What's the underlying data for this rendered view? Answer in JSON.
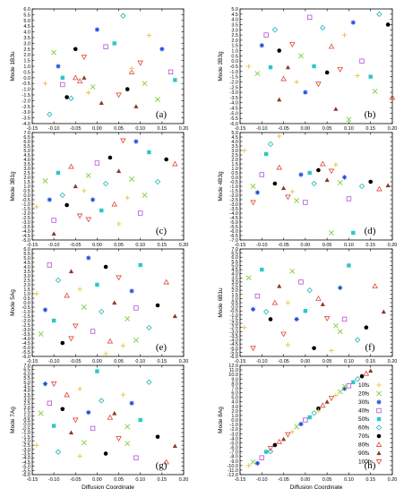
{
  "legend": [
    {
      "label": "10fs",
      "color": "#e8c84a",
      "marker": "plus"
    },
    {
      "label": "20fs",
      "color": "#8fd14f",
      "marker": "x"
    },
    {
      "label": "30fs",
      "color": "#1f4fd8",
      "marker": "star"
    },
    {
      "label": "40fs",
      "color": "#b44fd8",
      "marker": "square"
    },
    {
      "label": "50fs",
      "color": "#2cc7c7",
      "marker": "square-filled"
    },
    {
      "label": "60fs",
      "color": "#1fb0b0",
      "marker": "diamond"
    },
    {
      "label": "70fs",
      "color": "#000000",
      "marker": "circle"
    },
    {
      "label": "80fs",
      "color": "#e0453a",
      "marker": "triangle"
    },
    {
      "label": "90fs",
      "color": "#8a3a28",
      "marker": "triangle-filled"
    },
    {
      "label": "100fs",
      "color": "#e0453a",
      "marker": "triangle-down"
    }
  ],
  "chart_data": [
    {
      "type": "scatter",
      "panel": "(a)",
      "ylabel": "Mode 1B3u",
      "xlabel": "",
      "xlim": [
        -0.15,
        0.2
      ],
      "ylim": [
        -4.0,
        6.0
      ],
      "ystep": 0.5,
      "points": [
        [
          -0.12,
          -0.5
        ],
        [
          -0.1,
          2.2
        ],
        [
          -0.09,
          1.0
        ],
        [
          -0.08,
          -0.6
        ],
        [
          -0.08,
          0.0
        ],
        [
          -0.06,
          -1.8
        ],
        [
          -0.05,
          2.5
        ],
        [
          -0.04,
          -0.3
        ],
        [
          -0.03,
          0.0
        ],
        [
          -0.03,
          1.8
        ],
        [
          -0.02,
          -1.3
        ],
        [
          -0.01,
          -0.8
        ],
        [
          0.0,
          4.2
        ],
        [
          0.02,
          2.7
        ],
        [
          0.04,
          3.0
        ],
        [
          0.06,
          5.4
        ],
        [
          0.07,
          -1.0
        ],
        [
          0.08,
          0.5
        ],
        [
          0.09,
          -2.5
        ],
        [
          0.1,
          1.3
        ],
        [
          0.12,
          3.7
        ],
        [
          0.14,
          -1.9
        ],
        [
          0.15,
          2.5
        ],
        [
          0.17,
          0.5
        ],
        [
          0.18,
          -0.2
        ],
        [
          -0.11,
          -3.2
        ],
        [
          -0.07,
          -1.7
        ],
        [
          -0.05,
          0.0
        ],
        [
          0.01,
          -2.2
        ],
        [
          0.05,
          -1.5
        ],
        [
          0.08,
          0.8
        ],
        [
          0.11,
          -0.5
        ]
      ]
    },
    {
      "type": "scatter",
      "panel": "(b)",
      "ylabel": "Mode 2B3g",
      "xlabel": "",
      "xlim": [
        -0.15,
        0.2
      ],
      "ylim": [
        -6.0,
        5.0
      ],
      "ystep": 0.5,
      "points": [
        [
          -0.13,
          -0.5
        ],
        [
          -0.11,
          -1.2
        ],
        [
          -0.1,
          1.5
        ],
        [
          -0.09,
          2.5
        ],
        [
          -0.08,
          -0.6
        ],
        [
          -0.07,
          3.0
        ],
        [
          -0.06,
          1.0
        ],
        [
          -0.05,
          -1.7
        ],
        [
          -0.04,
          -0.6
        ],
        [
          -0.03,
          1.6
        ],
        [
          -0.02,
          -2.0
        ],
        [
          -0.01,
          0.5
        ],
        [
          0.0,
          -3.0
        ],
        [
          0.01,
          4.2
        ],
        [
          0.02,
          -0.5
        ],
        [
          0.04,
          3.2
        ],
        [
          0.05,
          -1.1
        ],
        [
          0.06,
          1.4
        ],
        [
          0.07,
          -4.6
        ],
        [
          0.08,
          -0.8
        ],
        [
          0.09,
          2.5
        ],
        [
          0.1,
          -5.6
        ],
        [
          0.11,
          3.7
        ],
        [
          0.13,
          0.0
        ],
        [
          0.15,
          -1.5
        ],
        [
          0.17,
          4.5
        ],
        [
          0.19,
          3.5
        ],
        [
          0.2,
          -3.5
        ],
        [
          -0.06,
          -3.7
        ],
        [
          0.03,
          -2.2
        ],
        [
          0.12,
          -1.4
        ],
        [
          0.16,
          -2.9
        ]
      ]
    },
    {
      "type": "scatter",
      "panel": "(c)",
      "ylabel": "Mode 3B1g",
      "xlabel": "",
      "xlim": [
        -0.15,
        0.2
      ],
      "ylim": [
        -5.0,
        7.0
      ],
      "ystep": 0.5,
      "points": [
        [
          -0.14,
          -1.3
        ],
        [
          -0.12,
          1.6
        ],
        [
          -0.11,
          -0.5
        ],
        [
          -0.1,
          -2.8
        ],
        [
          -0.09,
          2.5
        ],
        [
          -0.08,
          0.0
        ],
        [
          -0.07,
          -1.1
        ],
        [
          -0.06,
          3.2
        ],
        [
          -0.05,
          1.0
        ],
        [
          -0.04,
          -2.3
        ],
        [
          -0.03,
          0.5
        ],
        [
          -0.02,
          2.2
        ],
        [
          -0.01,
          -0.5
        ],
        [
          0.0,
          3.6
        ],
        [
          0.01,
          -1.7
        ],
        [
          0.02,
          1.3
        ],
        [
          0.03,
          4.2
        ],
        [
          0.04,
          -1.0
        ],
        [
          0.05,
          2.7
        ],
        [
          0.06,
          6.1
        ],
        [
          0.07,
          -0.3
        ],
        [
          0.08,
          1.8
        ],
        [
          0.09,
          6.0
        ],
        [
          0.1,
          -2.0
        ],
        [
          0.12,
          4.8
        ],
        [
          0.14,
          1.5
        ],
        [
          0.16,
          4.0
        ],
        [
          0.18,
          3.5
        ],
        [
          -0.1,
          -4.3
        ],
        [
          -0.02,
          -2.7
        ],
        [
          0.05,
          -3.2
        ],
        [
          0.11,
          0.0
        ]
      ]
    },
    {
      "type": "scatter",
      "panel": "(d)",
      "ylabel": "Mode 4B3g",
      "xlabel": "",
      "xlim": [
        -0.15,
        0.2
      ],
      "ylim": [
        -7.0,
        5.0
      ],
      "ystep": 0.5,
      "points": [
        [
          -0.14,
          3.0
        ],
        [
          -0.12,
          -1.0
        ],
        [
          -0.11,
          -1.7
        ],
        [
          -0.1,
          0.3
        ],
        [
          -0.09,
          2.6
        ],
        [
          -0.08,
          3.7
        ],
        [
          -0.07,
          -0.7
        ],
        [
          -0.06,
          1.1
        ],
        [
          -0.05,
          -1.2
        ],
        [
          -0.04,
          -2.2
        ],
        [
          -0.03,
          -1.6
        ],
        [
          -0.02,
          -2.6
        ],
        [
          -0.01,
          0.3
        ],
        [
          0.0,
          -2.8
        ],
        [
          0.01,
          0.5
        ],
        [
          0.02,
          -0.7
        ],
        [
          0.03,
          0.8
        ],
        [
          0.04,
          1.5
        ],
        [
          0.05,
          -0.3
        ],
        [
          0.06,
          0.7
        ],
        [
          0.07,
          1.4
        ],
        [
          0.08,
          -0.6
        ],
        [
          0.09,
          0.0
        ],
        [
          0.1,
          -2.4
        ],
        [
          0.11,
          -6.2
        ],
        [
          0.13,
          -1.0
        ],
        [
          0.15,
          -0.5
        ],
        [
          0.17,
          -1.3
        ],
        [
          0.19,
          -0.9
        ],
        [
          -0.12,
          -2.8
        ],
        [
          -0.06,
          4.6
        ],
        [
          0.06,
          -6.2
        ]
      ]
    },
    {
      "type": "scatter",
      "panel": "(e)",
      "ylabel": "Mode 5Ag",
      "xlabel": "",
      "xlim": [
        -0.15,
        0.2
      ],
      "ylim": [
        -6.0,
        6.0
      ],
      "ystep": 0.5,
      "points": [
        [
          -0.14,
          1.0
        ],
        [
          -0.13,
          -3.5
        ],
        [
          -0.12,
          -0.8
        ],
        [
          -0.11,
          4.2
        ],
        [
          -0.1,
          -2.0
        ],
        [
          -0.09,
          2.5
        ],
        [
          -0.08,
          -4.5
        ],
        [
          -0.07,
          0.8
        ],
        [
          -0.06,
          3.5
        ],
        [
          -0.05,
          -2.6
        ],
        [
          -0.04,
          1.5
        ],
        [
          -0.03,
          -0.5
        ],
        [
          -0.02,
          5.0
        ],
        [
          -0.01,
          -3.2
        ],
        [
          0.0,
          2.0
        ],
        [
          0.01,
          -1.0
        ],
        [
          0.02,
          4.0
        ],
        [
          0.03,
          -4.3
        ],
        [
          0.04,
          0.0
        ],
        [
          0.05,
          2.8
        ],
        [
          0.06,
          -4.8
        ],
        [
          0.07,
          -1.8
        ],
        [
          0.08,
          1.3
        ],
        [
          0.09,
          -0.6
        ],
        [
          0.1,
          4.2
        ],
        [
          0.12,
          -2.8
        ],
        [
          0.14,
          -0.3
        ],
        [
          0.16,
          2.3
        ],
        [
          0.18,
          -1.5
        ],
        [
          -0.06,
          -4.0
        ],
        [
          0.02,
          -5.7
        ],
        [
          0.09,
          -4.2
        ]
      ]
    },
    {
      "type": "scatter",
      "panel": "(f)",
      "ylabel": "Mode 6B1u",
      "xlabel": "",
      "xlim": [
        -0.15,
        0.2
      ],
      "ylim": [
        -6.0,
        7.0
      ],
      "ystep": 0.5,
      "points": [
        [
          -0.14,
          -2.5
        ],
        [
          -0.13,
          3.5
        ],
        [
          -0.12,
          -0.3
        ],
        [
          -0.11,
          1.3
        ],
        [
          -0.1,
          4.5
        ],
        [
          -0.09,
          -0.6
        ],
        [
          -0.08,
          -1.5
        ],
        [
          -0.07,
          0.5
        ],
        [
          -0.06,
          2.5
        ],
        [
          -0.05,
          -3.3
        ],
        [
          -0.04,
          0.5
        ],
        [
          -0.03,
          4.3
        ],
        [
          -0.02,
          -1.5
        ],
        [
          -0.01,
          3.0
        ],
        [
          0.0,
          -0.5
        ],
        [
          0.01,
          2.0
        ],
        [
          0.02,
          -5.0
        ],
        [
          0.03,
          1.0
        ],
        [
          0.04,
          0.3
        ],
        [
          0.05,
          -1.4
        ],
        [
          0.06,
          -5.3
        ],
        [
          0.07,
          -2.3
        ],
        [
          0.08,
          2.3
        ],
        [
          0.09,
          -1.5
        ],
        [
          0.1,
          5.0
        ],
        [
          0.12,
          -4.0
        ],
        [
          0.14,
          -2.5
        ],
        [
          0.16,
          2.5
        ],
        [
          0.18,
          -0.6
        ],
        [
          -0.12,
          -5.0
        ],
        [
          -0.04,
          -4.6
        ],
        [
          0.08,
          -3.0
        ]
      ]
    },
    {
      "type": "scatter",
      "panel": "(g)",
      "ylabel": "Mode 7Ag",
      "xlabel": "Diffusion Coordinate",
      "xlim": [
        -0.15,
        0.2
      ],
      "ylim": [
        -6.0,
        7.0
      ],
      "ystep": 0.5,
      "points": [
        [
          -0.14,
          -2.5
        ],
        [
          -0.13,
          1.3
        ],
        [
          -0.12,
          4.8
        ],
        [
          -0.11,
          2.5
        ],
        [
          -0.1,
          -0.2
        ],
        [
          -0.09,
          -3.3
        ],
        [
          -0.08,
          1.8
        ],
        [
          -0.07,
          3.5
        ],
        [
          -0.06,
          -1.0
        ],
        [
          -0.05,
          0.5
        ],
        [
          -0.04,
          4.2
        ],
        [
          -0.03,
          -2.2
        ],
        [
          -0.02,
          1.4
        ],
        [
          -0.01,
          -0.5
        ],
        [
          0.0,
          6.3
        ],
        [
          0.01,
          2.8
        ],
        [
          0.02,
          -3.5
        ],
        [
          0.03,
          0.8
        ],
        [
          0.04,
          1.3
        ],
        [
          0.05,
          -1.7
        ],
        [
          0.06,
          3.5
        ],
        [
          0.07,
          -0.3
        ],
        [
          0.08,
          2.5
        ],
        [
          0.09,
          -4.0
        ],
        [
          0.1,
          0.5
        ],
        [
          0.12,
          5.0
        ],
        [
          0.14,
          -1.5
        ],
        [
          0.16,
          -4.5
        ],
        [
          0.18,
          -2.6
        ],
        [
          -0.1,
          4.8
        ],
        [
          -0.04,
          -3.8
        ],
        [
          0.07,
          -2.3
        ]
      ]
    },
    {
      "type": "scatter",
      "panel": "(h)",
      "ylabel": "Mode 8Ag",
      "xlabel": "Diffusion Coordinate",
      "xlim": [
        -0.15,
        0.2
      ],
      "ylim": [
        -12.0,
        12.0
      ],
      "ystep": 1.0,
      "points": [
        [
          -0.13,
          -10.0
        ],
        [
          -0.12,
          -9.2
        ],
        [
          -0.11,
          -9.5
        ],
        [
          -0.1,
          -8.3
        ],
        [
          -0.09,
          -7.0
        ],
        [
          -0.08,
          -6.9
        ],
        [
          -0.07,
          -5.5
        ],
        [
          -0.06,
          -4.8
        ],
        [
          -0.05,
          -4.2
        ],
        [
          -0.04,
          -3.2
        ],
        [
          -0.03,
          -2.6
        ],
        [
          -0.02,
          -1.5
        ],
        [
          -0.01,
          -0.9
        ],
        [
          0.0,
          0.0
        ],
        [
          0.01,
          0.6
        ],
        [
          0.02,
          1.5
        ],
        [
          0.03,
          2.5
        ],
        [
          0.04,
          3.2
        ],
        [
          0.05,
          4.0
        ],
        [
          0.06,
          4.8
        ],
        [
          0.07,
          5.4
        ],
        [
          0.08,
          6.2
        ],
        [
          0.09,
          6.9
        ],
        [
          0.1,
          7.5
        ],
        [
          0.11,
          8.3
        ],
        [
          0.12,
          9.0
        ],
        [
          0.13,
          9.6
        ],
        [
          0.14,
          10.2
        ],
        [
          0.15,
          10.8
        ],
        [
          -0.08,
          -6.2
        ],
        [
          0.03,
          2.0
        ],
        [
          0.09,
          7.4
        ]
      ]
    }
  ]
}
